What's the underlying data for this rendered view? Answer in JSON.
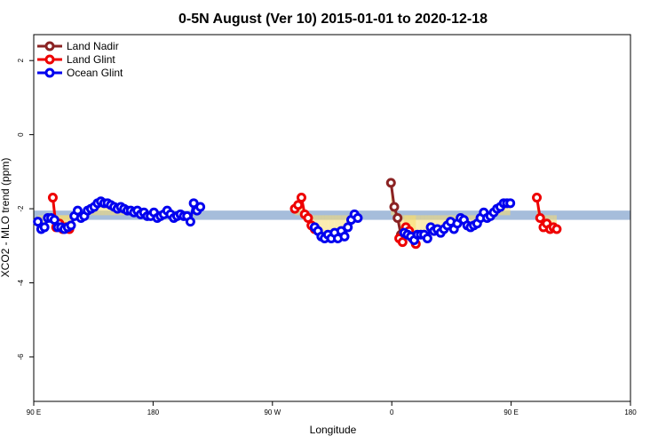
{
  "chart_data": {
    "type": "line",
    "title": "0-5N August (Ver 10)   2015-01-01 to 2020-12-18",
    "xlabel": "Longitude",
    "ylabel": "XCO2 - MLO trend (ppm)",
    "xlim": [
      90,
      450
    ],
    "ylim": [
      -7.2,
      2.7
    ],
    "x_ticks": [
      {
        "value": 90,
        "label": "90 E"
      },
      {
        "value": 162,
        "label": "180"
      },
      {
        "value": 234,
        "label": "90 W"
      },
      {
        "value": 306,
        "label": "0"
      },
      {
        "value": 378,
        "label": "90 E"
      },
      {
        "value": 450,
        "label": "180"
      }
    ],
    "y_ticks": [
      {
        "value": 2,
        "label": "2"
      },
      {
        "value": 0,
        "label": "0"
      },
      {
        "value": -2,
        "label": "-2"
      },
      {
        "value": -4,
        "label": "-4"
      },
      {
        "value": -6,
        "label": "-6"
      }
    ],
    "legend_position": "top-left",
    "reference_band": {
      "from": -2.3,
      "to": -2.05,
      "color": "#a6bddb"
    },
    "series": [
      {
        "name": "Land Nadir",
        "color": "#8b2323",
        "segments": [
          [
            [
              305.5,
              -1.3
            ],
            [
              307.5,
              -1.95
            ],
            [
              309.5,
              -2.25
            ],
            [
              311.5,
              -2.7
            ]
          ]
        ]
      },
      {
        "name": "Land Glint",
        "color": "#ee0000",
        "segments": [
          [
            [
              101.5,
              -1.7
            ],
            [
              103.5,
              -2.5
            ],
            [
              105.5,
              -2.4
            ],
            [
              107.5,
              -2.55
            ],
            [
              109.5,
              -2.5
            ],
            [
              111.5,
              -2.55
            ]
          ],
          [
            [
              247.5,
              -2.0
            ],
            [
              249.5,
              -1.9
            ],
            [
              251.5,
              -1.7
            ],
            [
              253.5,
              -2.15
            ],
            [
              255.5,
              -2.25
            ],
            [
              257.5,
              -2.45
            ],
            [
              259.5,
              -2.55
            ]
          ],
          [
            [
              310.5,
              -2.8
            ],
            [
              312.5,
              -2.9
            ],
            [
              314.5,
              -2.5
            ],
            [
              316.5,
              -2.6
            ],
            [
              318.5,
              -2.8
            ],
            [
              320.5,
              -2.95
            ]
          ],
          [
            [
              393.5,
              -1.7
            ],
            [
              395.5,
              -2.25
            ],
            [
              397.5,
              -2.5
            ],
            [
              399.5,
              -2.4
            ],
            [
              401.5,
              -2.55
            ],
            [
              403.5,
              -2.5
            ],
            [
              405.5,
              -2.55
            ]
          ]
        ]
      },
      {
        "name": "Ocean Glint",
        "color": "#0000ee",
        "segments": [
          [
            [
              92.5,
              -2.35
            ],
            [
              94.5,
              -2.55
            ],
            [
              96.5,
              -2.5
            ],
            [
              98.5,
              -2.25
            ],
            [
              100.5,
              -2.25
            ],
            [
              102.5,
              -2.3
            ],
            [
              104.5,
              -2.5
            ],
            [
              106.5,
              -2.5
            ],
            [
              108.5,
              -2.55
            ],
            [
              110.5,
              -2.5
            ],
            [
              112.5,
              -2.45
            ],
            [
              114.5,
              -2.2
            ],
            [
              116.5,
              -2.05
            ],
            [
              118.5,
              -2.25
            ],
            [
              120.5,
              -2.2
            ],
            [
              122.5,
              -2.05
            ],
            [
              124.5,
              -2.0
            ],
            [
              126.5,
              -1.95
            ],
            [
              128.5,
              -1.85
            ],
            [
              130.5,
              -1.8
            ],
            [
              132.5,
              -1.85
            ],
            [
              134.5,
              -1.85
            ],
            [
              136.5,
              -1.9
            ],
            [
              138.5,
              -1.95
            ],
            [
              140.5,
              -2.0
            ],
            [
              142.5,
              -1.95
            ],
            [
              144.5,
              -2.0
            ],
            [
              146.5,
              -2.05
            ],
            [
              148.5,
              -2.05
            ],
            [
              150.5,
              -2.1
            ],
            [
              152.5,
              -2.05
            ],
            [
              154.5,
              -2.15
            ],
            [
              156.5,
              -2.1
            ],
            [
              158.5,
              -2.2
            ],
            [
              160.5,
              -2.2
            ],
            [
              162.5,
              -2.1
            ],
            [
              164.5,
              -2.25
            ],
            [
              166.5,
              -2.2
            ],
            [
              168.5,
              -2.15
            ],
            [
              170.5,
              -2.05
            ],
            [
              172.5,
              -2.15
            ],
            [
              174.5,
              -2.25
            ],
            [
              176.5,
              -2.2
            ],
            [
              178.5,
              -2.15
            ],
            [
              180.5,
              -2.2
            ],
            [
              182.5,
              -2.2
            ],
            [
              184.5,
              -2.35
            ],
            [
              186.5,
              -1.85
            ],
            [
              188.5,
              -2.05
            ],
            [
              190.5,
              -1.95
            ]
          ],
          [
            [
              259.5,
              -2.5
            ],
            [
              261.5,
              -2.6
            ],
            [
              263.5,
              -2.75
            ],
            [
              265.5,
              -2.8
            ],
            [
              267.5,
              -2.7
            ],
            [
              269.5,
              -2.8
            ],
            [
              271.5,
              -2.65
            ],
            [
              273.5,
              -2.8
            ],
            [
              275.5,
              -2.6
            ],
            [
              277.5,
              -2.75
            ],
            [
              279.5,
              -2.5
            ],
            [
              281.5,
              -2.3
            ],
            [
              283.5,
              -2.15
            ],
            [
              285.5,
              -2.25
            ]
          ],
          [
            [
              313.5,
              -2.65
            ],
            [
              315.5,
              -2.7
            ],
            [
              317.5,
              -2.75
            ],
            [
              319.5,
              -2.85
            ],
            [
              321.5,
              -2.7
            ],
            [
              323.5,
              -2.7
            ],
            [
              325.5,
              -2.7
            ],
            [
              327.5,
              -2.8
            ],
            [
              329.5,
              -2.5
            ],
            [
              331.5,
              -2.6
            ],
            [
              333.5,
              -2.55
            ],
            [
              335.5,
              -2.65
            ],
            [
              337.5,
              -2.55
            ],
            [
              339.5,
              -2.45
            ],
            [
              341.5,
              -2.35
            ],
            [
              343.5,
              -2.55
            ],
            [
              345.5,
              -2.4
            ],
            [
              347.5,
              -2.25
            ],
            [
              349.5,
              -2.3
            ],
            [
              351.5,
              -2.45
            ],
            [
              353.5,
              -2.5
            ],
            [
              355.5,
              -2.45
            ],
            [
              357.5,
              -2.4
            ],
            [
              359.5,
              -2.25
            ],
            [
              361.5,
              -2.1
            ],
            [
              363.5,
              -2.25
            ],
            [
              365.5,
              -2.2
            ],
            [
              367.5,
              -2.1
            ],
            [
              369.5,
              -2.0
            ],
            [
              371.5,
              -1.95
            ],
            [
              373.5,
              -1.85
            ],
            [
              375.5,
              -1.85
            ],
            [
              377.5,
              -1.85
            ]
          ]
        ]
      }
    ]
  }
}
